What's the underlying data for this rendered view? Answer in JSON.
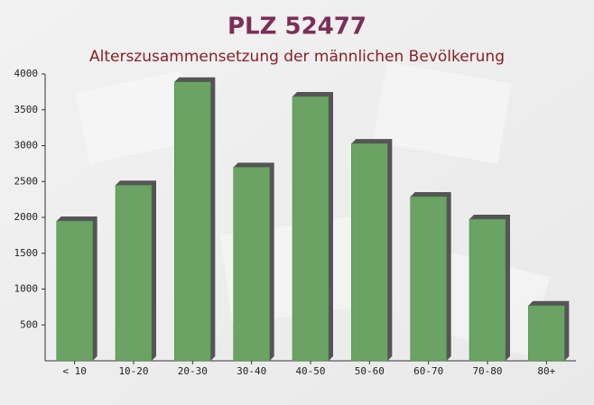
{
  "chart_data": {
    "type": "bar",
    "title": "PLZ 52477",
    "subtitle": "Alterszusammensetzung der männlichen Bevölkerung",
    "categories": [
      "< 10",
      "10-20",
      "20-30",
      "30-40",
      "40-50",
      "50-60",
      "60-70",
      "70-80",
      "80+"
    ],
    "values": [
      1950,
      2450,
      3890,
      2700,
      3685,
      3030,
      2290,
      1975,
      770
    ],
    "color": "#6aa364",
    "ylim": [
      0,
      4000
    ],
    "yticks": [
      500,
      1000,
      1500,
      2000,
      2500,
      3000,
      3500,
      4000
    ],
    "grid": false
  }
}
